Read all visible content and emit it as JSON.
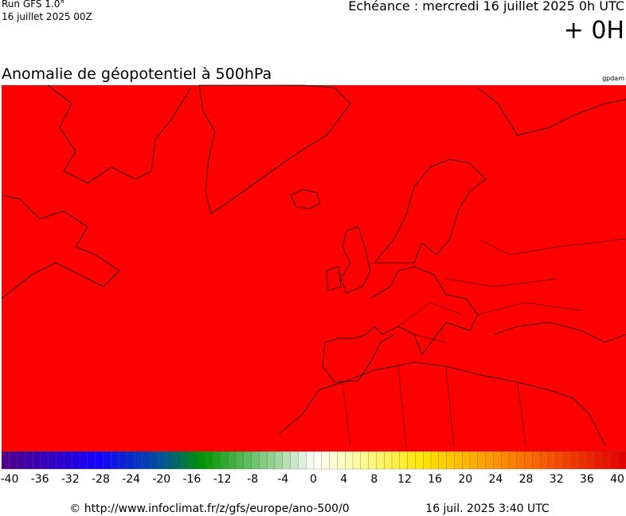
{
  "header": {
    "run": "Run GFS 1.0°",
    "date": "16 juillet 2025 00Z",
    "echeance": "Echéance : mercredi 16 juillet 2025 0h UTC",
    "offset": "+ 0H"
  },
  "map": {
    "title": "Anomalie de géopotentiel à 500hPa",
    "unit": "gpdam"
  },
  "colorbar": {
    "range": [
      -40,
      40
    ],
    "ticks": [
      -40,
      -36,
      -32,
      -28,
      -24,
      -20,
      -16,
      -12,
      -8,
      -4,
      0,
      4,
      8,
      12,
      16,
      20,
      24,
      28,
      32,
      36,
      40
    ]
  },
  "footer": {
    "source": "© http://www.infoclimat.fr/z/gfs/europe/ano-500/0",
    "generated": "16 juil. 2025  3:40 UTC"
  }
}
